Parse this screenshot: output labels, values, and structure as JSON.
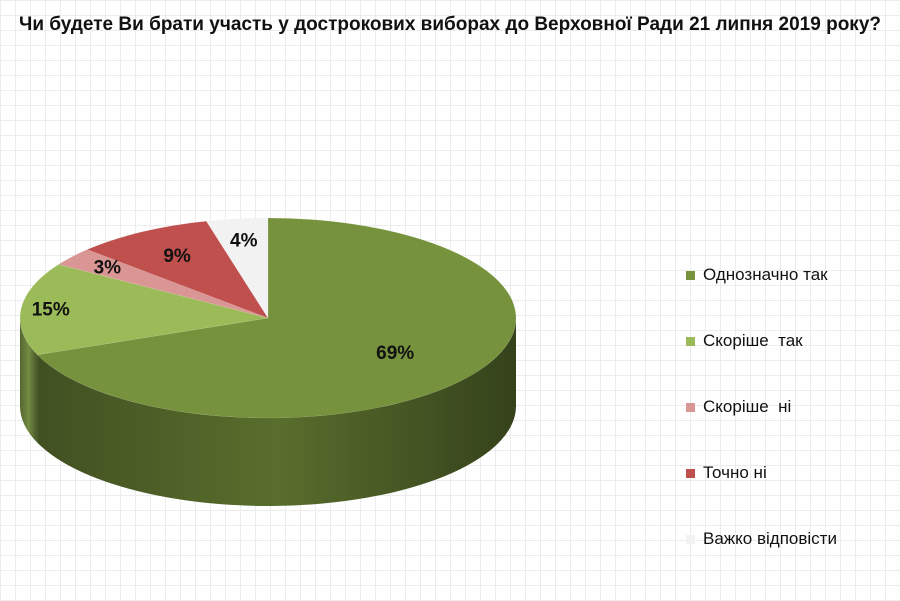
{
  "chart_data": {
    "type": "pie",
    "title": "Чи будете Ви брати участь у дострокових виборах до Верховної Ради 21 липня 2019 року?",
    "slices": [
      {
        "label": "Однозначно так",
        "value": 69,
        "display": "69%",
        "color": "#76923c"
      },
      {
        "label": "Скоріше  так",
        "value": 15,
        "display": "15%",
        "color": "#9bbb59"
      },
      {
        "label": "Скоріше  ні",
        "value": 3,
        "display": "3%",
        "color": "#d99694"
      },
      {
        "label": "Точно ні",
        "value": 9,
        "display": "9%",
        "color": "#c0504d"
      },
      {
        "label": "Важко відповісти",
        "value": 4,
        "display": "4%",
        "color": "#f2f2f2"
      }
    ],
    "legend_position": "right"
  }
}
